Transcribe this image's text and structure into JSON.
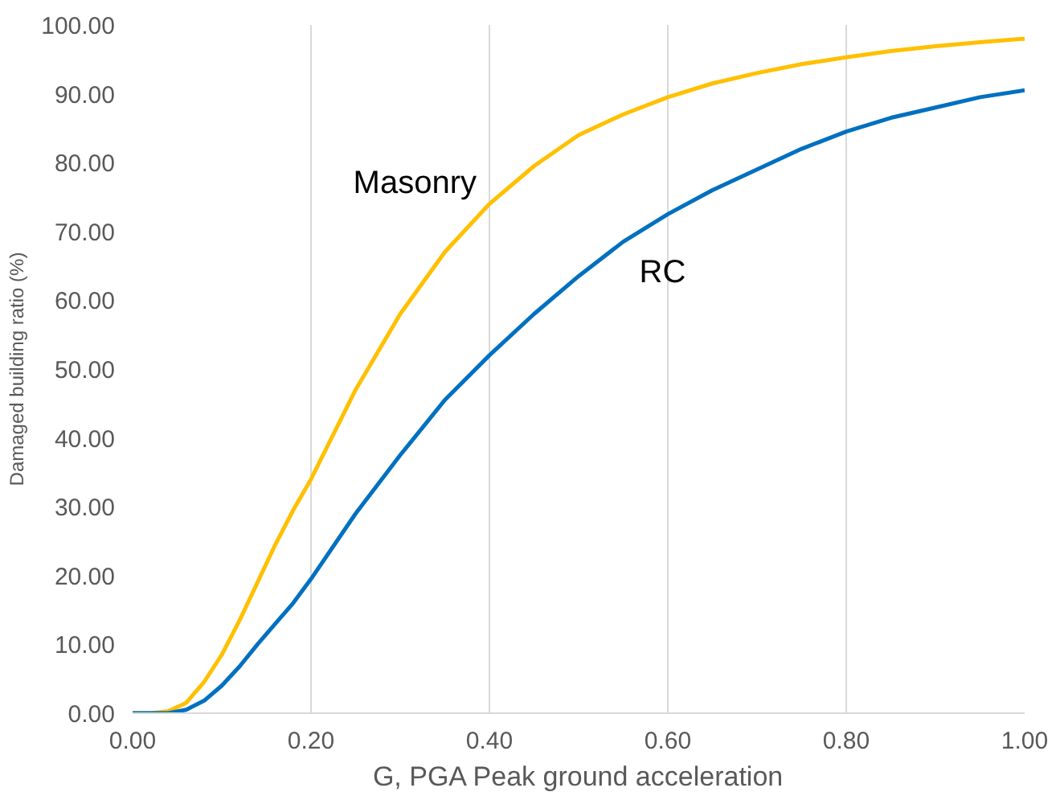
{
  "chart_data": {
    "type": "line",
    "xlabel": "G, PGA Peak ground acceleration",
    "ylabel": "Damaged building ratio (%)",
    "grid": "x",
    "marker": "none",
    "line_style": "solid",
    "xlim": [
      0,
      1
    ],
    "ylim": [
      0,
      100
    ],
    "xticks": [
      {
        "value": 0,
        "label": "0.00"
      },
      {
        "value": 0.2,
        "label": "0.20"
      },
      {
        "value": 0.4,
        "label": "0.40"
      },
      {
        "value": 0.6,
        "label": "0.60"
      },
      {
        "value": 0.8,
        "label": "0.80"
      },
      {
        "value": 1,
        "label": "1.00"
      }
    ],
    "yticks": [
      {
        "value": 0,
        "label": "0.00"
      },
      {
        "value": 10,
        "label": "10.00"
      },
      {
        "value": 20,
        "label": "20.00"
      },
      {
        "value": 30,
        "label": "30.00"
      },
      {
        "value": 40,
        "label": "40.00"
      },
      {
        "value": 50,
        "label": "50.00"
      },
      {
        "value": 60,
        "label": "60.00"
      },
      {
        "value": 70,
        "label": "70.00"
      },
      {
        "value": 80,
        "label": "80.00"
      },
      {
        "value": 90,
        "label": "90.00"
      },
      {
        "value": 100,
        "label": "100.00"
      }
    ],
    "x": [
      0,
      0.02,
      0.04,
      0.06,
      0.08,
      0.1,
      0.12,
      0.14,
      0.16,
      0.18,
      0.2,
      0.25,
      0.3,
      0.35,
      0.4,
      0.45,
      0.5,
      0.55,
      0.6,
      0.65,
      0.7,
      0.75,
      0.8,
      0.85,
      0.9,
      0.95,
      1.0
    ],
    "series": [
      {
        "name": "Masonry",
        "color": "#ffc000",
        "values": [
          0,
          0,
          0.3,
          1.5,
          4.5,
          8.5,
          13.5,
          19,
          24.5,
          29.5,
          34,
          47,
          58,
          67,
          74,
          79.5,
          84,
          87,
          89.5,
          91.5,
          93,
          94.3,
          95.3,
          96.2,
          96.9,
          97.5,
          98
        ]
      },
      {
        "name": "RC",
        "color": "#0070c0",
        "values": [
          0,
          0,
          0,
          0.5,
          1.8,
          4,
          6.8,
          10,
          13,
          16,
          19.5,
          29,
          37.5,
          45.5,
          52,
          58,
          63.5,
          68.5,
          72.5,
          76,
          79,
          82,
          84.5,
          86.5,
          88,
          89.5,
          90.5
        ]
      }
    ]
  }
}
